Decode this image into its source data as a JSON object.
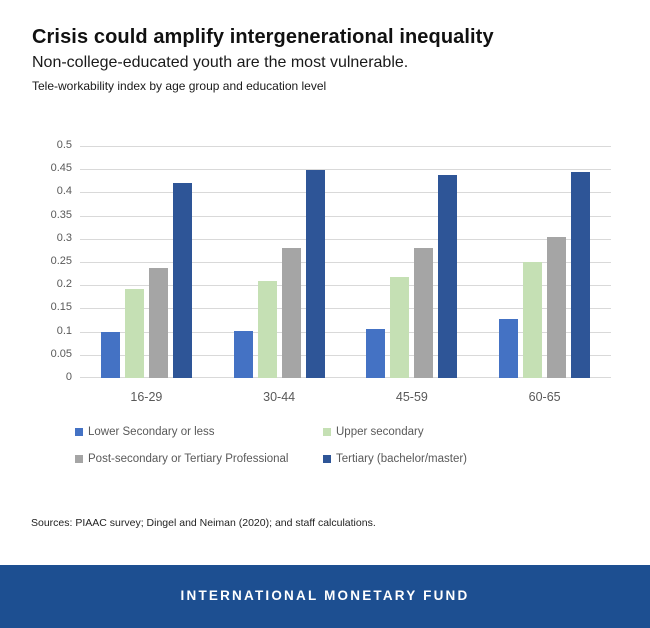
{
  "header": {
    "title": "Crisis could amplify intergenerational inequality",
    "subtitle": "Non-college-educated youth are the most vulnerable.",
    "caption": "Tele-workability index by age group and education level"
  },
  "chart_data": {
    "type": "bar",
    "title": "Tele-workability index by age group and education level",
    "categories": [
      "16-29",
      "30-44",
      "45-59",
      "60-65"
    ],
    "series": [
      {
        "name": "Lower Secondary or less",
        "color": "#4472C4",
        "values": [
          0.1,
          0.102,
          0.106,
          0.127
        ]
      },
      {
        "name": "Upper secondary",
        "color": "#C5E0B4",
        "values": [
          0.192,
          0.208,
          0.218,
          0.25
        ]
      },
      {
        "name": "Post-secondary or Tertiary Professional",
        "color": "#A5A5A5",
        "values": [
          0.236,
          0.281,
          0.281,
          0.304
        ]
      },
      {
        "name": "Tertiary (bachelor/master)",
        "color": "#2E5597",
        "values": [
          0.42,
          0.448,
          0.438,
          0.443
        ]
      }
    ],
    "xlabel": "",
    "ylabel": "",
    "ylim": [
      0,
      0.5
    ],
    "ytick_labels": [
      "0",
      "0.05",
      "0.1",
      "0.15",
      "0.2",
      "0.25",
      "0.3",
      "0.35",
      "0.4",
      "0.45",
      "0.5"
    ],
    "grid": true,
    "gridline_color": "#d9d9d9",
    "axis_text_color": "#595959",
    "legend_position": "bottom"
  },
  "sources": "Sources: PIAAC survey; Dingel and Neiman (2020); and staff calculations.",
  "footer": {
    "brand": "INTERNATIONAL MONETARY FUND",
    "background": "#1d4f91"
  }
}
